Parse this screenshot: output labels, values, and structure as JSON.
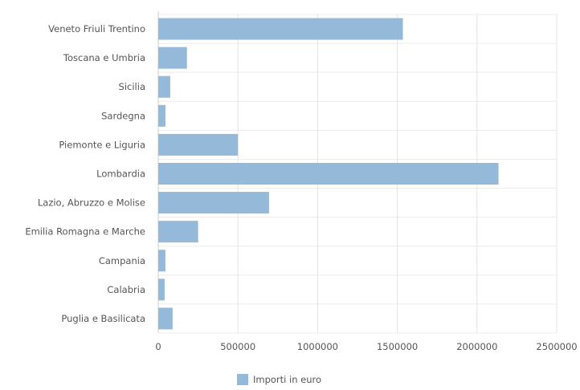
{
  "chart_data": {
    "type": "bar",
    "orientation": "horizontal",
    "categories": [
      "Veneto Friuli Trentino",
      "Toscana e Umbria",
      "Sicilia",
      "Sardegna",
      "Piemonte e Liguria",
      "Lombardia",
      "Lazio, Abruzzo e Molise",
      "Emilia Romagna e Marche",
      "Campania",
      "Calabria",
      "Puglia e Basilicata"
    ],
    "series": [
      {
        "name": "Importi in euro",
        "values": [
          1535000,
          180000,
          75000,
          45000,
          500000,
          2135000,
          695000,
          250000,
          45000,
          40000,
          90000
        ]
      }
    ],
    "xlim": [
      0,
      2500000
    ],
    "x_ticks": [
      "0",
      "500000",
      "1000000",
      "1500000",
      "2000000",
      "2500000"
    ],
    "grid": true,
    "legend_position": "bottom-center",
    "bar_color": "#94b9d9"
  }
}
